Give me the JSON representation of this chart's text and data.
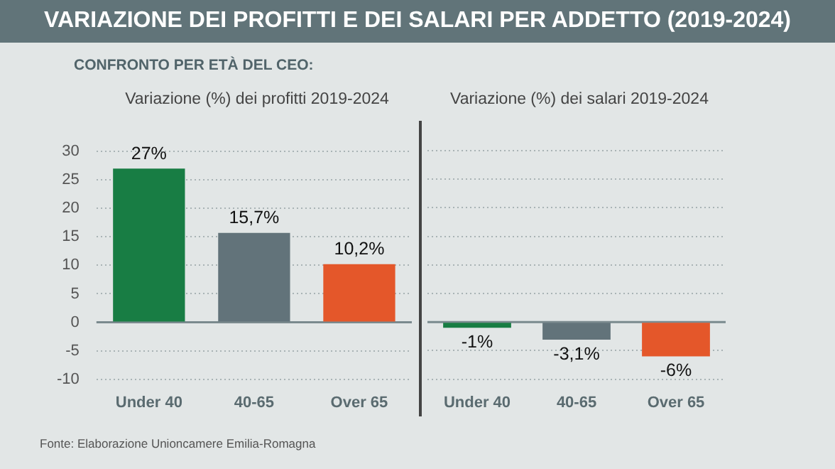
{
  "chart_data": [
    {
      "type": "bar",
      "title": "Variazione (%) dei profitti 2019-2024",
      "subtitle": "CONFRONTO PER ETÀ DEL CEO:",
      "annotations": [
        "VARIAZIONE DEI PROFITTI E DEI SALARI PER ADDETTO (2019-2024)",
        "Fonte: Elaborazione Unioncamere Emilia-Romagna"
      ],
      "categories": [
        "Under 40",
        "40-65",
        "Over 65"
      ],
      "values": [
        27,
        15.7,
        10.2
      ],
      "colors": [
        "#187d44",
        "#62737a",
        "#e4572a"
      ],
      "value_labels": [
        "27%",
        "15,7%",
        "10,2%"
      ],
      "ylim": [
        -10,
        30
      ],
      "yticks": [
        -10,
        -5,
        0,
        5,
        10,
        15,
        20,
        25,
        30
      ],
      "grid": "y",
      "ref_lines": [
        {
          "axis": "y",
          "value": 0,
          "color": "#7a8a8e"
        }
      ]
    },
    {
      "type": "bar",
      "title": "Variazione (%) dei salari 2019-2024",
      "categories": [
        "Under 40",
        "40-65",
        "Over 65"
      ],
      "values": [
        -1,
        -3.1,
        -6
      ],
      "colors": [
        "#187d44",
        "#62737a",
        "#e4572a"
      ],
      "value_labels": [
        "-1%",
        "-3,1%",
        "-6%"
      ],
      "ylim": [
        -10,
        30
      ],
      "yticks": [
        -10,
        -5,
        0,
        5,
        10,
        15,
        20,
        25,
        30
      ],
      "grid": "y",
      "tick_labels": "x",
      "ref_lines": [
        {
          "axis": "y",
          "value": 0,
          "color": "#7a8a8e"
        }
      ]
    }
  ]
}
